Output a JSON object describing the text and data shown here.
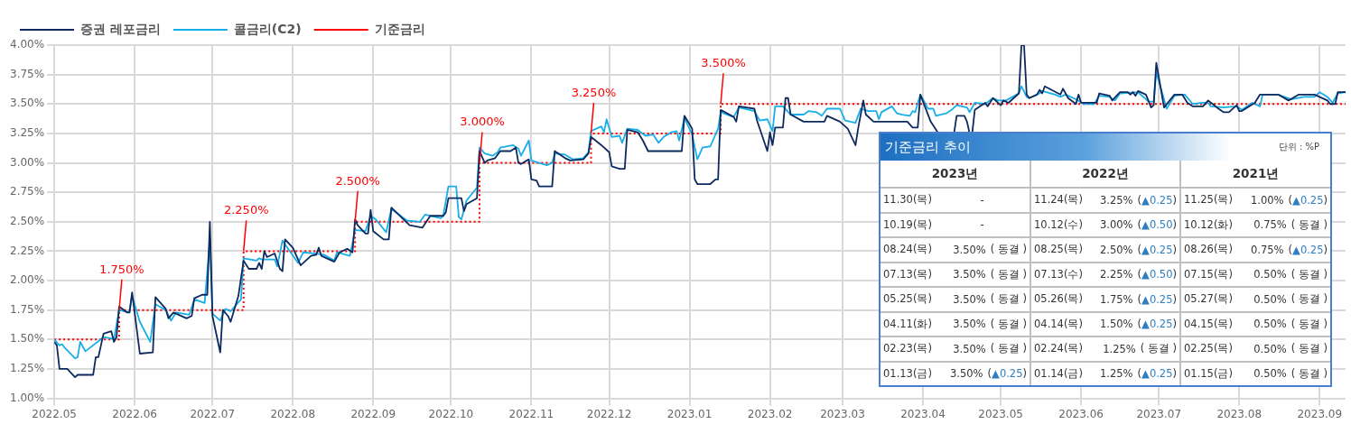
{
  "chart_data": [
    {
      "type": "line",
      "legend": "top left",
      "grid": true,
      "marker": "none",
      "xlim": [
        "2022-05-01",
        "2023-09-11"
      ],
      "xticks": [
        {
          "value": "2022-05-01",
          "label": "2022.05"
        },
        {
          "value": "2022-06-01",
          "label": "2022.06"
        },
        {
          "value": "2022-07-01",
          "label": "2022.07"
        },
        {
          "value": "2022-08-01",
          "label": "2022.08"
        },
        {
          "value": "2022-09-01",
          "label": "2022.09"
        },
        {
          "value": "2022-10-01",
          "label": "2022.10"
        },
        {
          "value": "2022-11-01",
          "label": "2022.11"
        },
        {
          "value": "2022-12-01",
          "label": "2022.12"
        },
        {
          "value": "2023-01-01",
          "label": "2023.01"
        },
        {
          "value": "2023-02-01",
          "label": "2023.02"
        },
        {
          "value": "2023-03-01",
          "label": "2023.03"
        },
        {
          "value": "2023-04-01",
          "label": "2023.04"
        },
        {
          "value": "2023-05-01",
          "label": "2023.05"
        },
        {
          "value": "2023-06-01",
          "label": "2023.06"
        },
        {
          "value": "2023-07-01",
          "label": "2023.07"
        },
        {
          "value": "2023-08-01",
          "label": "2023.08"
        },
        {
          "value": "2023-09-01",
          "label": "2023.09"
        }
      ],
      "ylim": [
        1,
        4
      ],
      "yticks": [
        {
          "value": 1,
          "label": "1.00%"
        },
        {
          "value": 1.25,
          "label": "1.25%"
        },
        {
          "value": 1.5,
          "label": "1.50%"
        },
        {
          "value": 1.75,
          "label": "1.75%"
        },
        {
          "value": 2,
          "label": "2.00%"
        },
        {
          "value": 2.25,
          "label": "2.25%"
        },
        {
          "value": 2.5,
          "label": "2.50%"
        },
        {
          "value": 2.75,
          "label": "2.75%"
        },
        {
          "value": 3,
          "label": "3.00%"
        },
        {
          "value": 3.25,
          "label": "3.25%"
        },
        {
          "value": 3.5,
          "label": "3.50%"
        },
        {
          "value": 3.75,
          "label": "3.75%"
        },
        {
          "value": 4,
          "label": "4.00%"
        }
      ],
      "annotations": [
        {
          "text": "1.750%",
          "x": "2022-05-26",
          "y": 1.75
        },
        {
          "text": "2.250%",
          "x": "2022-07-13",
          "y": 2.25
        },
        {
          "text": "2.500%",
          "x": "2022-08-25",
          "y": 2.5
        },
        {
          "text": "3.000%",
          "x": "2022-10-12",
          "y": 3
        },
        {
          "text": "3.250%",
          "x": "2022-11-24",
          "y": 3.25
        },
        {
          "text": "3.500%",
          "x": "2023-01-13",
          "y": 3.5
        }
      ],
      "series": [
        {
          "name": "증권 레포금리",
          "type": "line",
          "color": "#0d2a5e",
          "x": [
            "2022-05-01",
            "2022-05-02",
            "2022-05-03",
            "2022-05-06",
            "2022-05-09",
            "2022-05-10",
            "2022-05-16",
            "2022-05-17",
            "2022-05-18",
            "2022-05-20",
            "2022-05-23",
            "2022-05-24",
            "2022-05-25",
            "2022-05-26",
            "2022-05-29",
            "2022-05-30",
            "2022-05-31",
            "2022-06-03",
            "2022-06-08",
            "2022-06-09",
            "2022-06-13",
            "2022-06-14",
            "2022-06-16",
            "2022-06-21",
            "2022-06-23",
            "2022-06-24",
            "2022-06-27",
            "2022-06-29",
            "2022-06-30",
            "2022-07-01",
            "2022-07-04",
            "2022-07-05",
            "2022-07-07",
            "2022-07-08",
            "2022-07-11",
            "2022-07-13",
            "2022-07-15",
            "2022-07-18",
            "2022-07-19",
            "2022-07-20",
            "2022-07-21",
            "2022-07-22",
            "2022-07-25",
            "2022-07-27",
            "2022-07-28",
            "2022-07-29",
            "2022-08-01",
            "2022-08-04",
            "2022-08-08",
            "2022-08-10",
            "2022-08-11",
            "2022-08-12",
            "2022-08-17",
            "2022-08-19",
            "2022-08-22",
            "2022-08-24",
            "2022-08-25",
            "2022-08-26",
            "2022-08-29",
            "2022-08-30",
            "2022-08-31",
            "2022-09-01",
            "2022-09-05",
            "2022-09-07",
            "2022-09-08",
            "2022-09-15",
            "2022-09-20",
            "2022-09-23",
            "2022-09-28",
            "2022-09-29",
            "2022-09-30",
            "2022-10-05",
            "2022-10-06",
            "2022-10-07",
            "2022-10-11",
            "2022-10-12",
            "2022-10-14",
            "2022-10-15",
            "2022-10-18",
            "2022-10-20",
            "2022-10-24",
            "2022-10-26",
            "2022-10-27",
            "2022-10-28",
            "2022-10-31",
            "2022-11-01",
            "2022-11-03",
            "2022-11-04",
            "2022-11-09",
            "2022-11-10",
            "2022-11-14",
            "2022-11-16",
            "2022-11-21",
            "2022-11-23",
            "2022-11-24",
            "2022-11-28",
            "2022-12-01",
            "2022-12-02",
            "2022-12-05",
            "2022-12-07",
            "2022-12-08",
            "2022-12-12",
            "2022-12-14",
            "2022-12-16",
            "2022-12-29",
            "2022-12-30",
            "2023-01-02",
            "2023-01-03",
            "2023-01-04",
            "2023-01-09",
            "2023-01-11",
            "2023-01-12",
            "2023-01-13",
            "2023-01-18",
            "2023-01-19",
            "2023-01-20",
            "2023-01-26",
            "2023-01-27",
            "2023-01-31",
            "2023-02-01",
            "2023-02-02",
            "2023-02-03",
            "2023-02-06",
            "2023-02-07",
            "2023-02-08",
            "2023-02-09",
            "2023-02-14",
            "2023-02-22",
            "2023-02-23",
            "2023-02-28",
            "2023-03-03",
            "2023-03-06",
            "2023-03-07",
            "2023-03-09",
            "2023-03-10",
            "2023-03-13",
            "2023-03-20",
            "2023-03-26",
            "2023-03-28",
            "2023-03-30",
            "2023-03-31",
            "2023-04-04",
            "2023-04-07",
            "2023-04-13",
            "2023-04-14",
            "2023-04-17",
            "2023-04-18",
            "2023-04-19",
            "2023-04-20",
            "2023-04-21",
            "2023-04-25",
            "2023-04-26",
            "2023-04-28",
            "2023-05-01",
            "2023-05-02",
            "2023-05-04",
            "2023-05-08",
            "2023-05-09",
            "2023-05-10",
            "2023-05-11",
            "2023-05-12",
            "2023-05-15",
            "2023-05-16",
            "2023-05-17",
            "2023-05-18",
            "2023-05-24",
            "2023-05-25",
            "2023-05-27",
            "2023-05-30",
            "2023-05-31",
            "2023-06-01",
            "2023-06-07",
            "2023-06-08",
            "2023-06-12",
            "2023-06-13",
            "2023-06-16",
            "2023-06-19",
            "2023-06-20",
            "2023-06-21",
            "2023-06-22",
            "2023-06-23",
            "2023-06-26",
            "2023-06-28",
            "2023-06-29",
            "2023-06-30",
            "2023-07-03",
            "2023-07-07",
            "2023-07-10",
            "2023-07-12",
            "2023-07-14",
            "2023-07-18",
            "2023-07-20",
            "2023-07-24",
            "2023-07-26",
            "2023-07-28",
            "2023-07-31",
            "2023-08-01",
            "2023-08-02",
            "2023-08-07",
            "2023-08-09",
            "2023-08-16",
            "2023-08-20",
            "2023-08-24",
            "2023-08-30",
            "2023-09-04",
            "2023-09-05",
            "2023-09-07",
            "2023-09-08",
            "2023-09-11"
          ],
          "values": [
            1.48,
            1.45,
            1.25,
            1.25,
            1.18,
            1.2,
            1.2,
            1.35,
            1.35,
            1.55,
            1.57,
            1.48,
            1.52,
            1.78,
            1.73,
            1.73,
            1.9,
            1.38,
            1.39,
            1.86,
            1.76,
            1.68,
            1.73,
            1.68,
            1.7,
            1.85,
            1.88,
            1.88,
            2.5,
            1.7,
            1.39,
            1.75,
            1.7,
            1.65,
            1.87,
            2.17,
            2.1,
            2.1,
            2.15,
            2.1,
            2.25,
            2.2,
            2.23,
            2.1,
            2.08,
            2.35,
            2.28,
            2.13,
            2.21,
            2.22,
            2.28,
            2.21,
            2.16,
            2.24,
            2.27,
            2.24,
            2.52,
            2.47,
            2.4,
            2.4,
            2.6,
            2.42,
            2.35,
            2.35,
            2.62,
            2.47,
            2.45,
            2.55,
            2.55,
            2.58,
            2.7,
            2.7,
            2.59,
            2.65,
            2.7,
            3.1,
            3,
            3.02,
            3.04,
            3.1,
            3.1,
            3.13,
            3,
            2.99,
            3.03,
            2.86,
            2.85,
            2.8,
            2.8,
            3.1,
            3.04,
            3.02,
            3.03,
            3.08,
            3.22,
            3.15,
            3.09,
            2.97,
            2.95,
            2.95,
            3.28,
            3.26,
            3.19,
            3.1,
            3.1,
            3.4,
            3.29,
            2.86,
            2.82,
            2.82,
            2.86,
            2.86,
            3.45,
            3.39,
            3.35,
            3.48,
            3.46,
            3.36,
            3.1,
            3.26,
            3.15,
            3.3,
            3.3,
            3.55,
            3.55,
            3.41,
            3.35,
            3.35,
            3.4,
            3.35,
            3.29,
            3.15,
            3.29,
            3.53,
            3.41,
            3.35,
            3.35,
            3.35,
            3.3,
            3.3,
            3.58,
            3.35,
            3.25,
            3.25,
            3.4,
            3.4,
            3.35,
            3.25,
            3.25,
            3.45,
            3.51,
            3.48,
            3.55,
            3.49,
            3.53,
            3.51,
            3.59,
            4,
            4,
            3.58,
            3.55,
            3.58,
            3.62,
            3.59,
            3.65,
            3.58,
            3.63,
            3.55,
            3.5,
            3.58,
            3.51,
            3.51,
            3.59,
            3.57,
            3.53,
            3.6,
            3.6,
            3.58,
            3.6,
            3.57,
            3.61,
            3.58,
            3.47,
            3.49,
            3.85,
            3.47,
            3.58,
            3.58,
            3.51,
            3.48,
            3.48,
            3.53,
            3.46,
            3.43,
            3.43,
            3.49,
            3.44,
            3.44,
            3.51,
            3.58,
            3.58,
            3.53,
            3.58,
            3.58,
            3.53,
            3.5,
            3.5,
            3.6,
            3.6
          ]
        },
        {
          "name": "콜금리(C2)",
          "type": "line",
          "color": "#18aee8",
          "x": [
            "2022-05-01",
            "2022-05-03",
            "2022-05-04",
            "2022-05-05",
            "2022-05-09",
            "2022-05-10",
            "2022-05-11",
            "2022-05-13",
            "2022-05-20",
            "2022-05-23",
            "2022-05-24",
            "2022-05-26",
            "2022-05-30",
            "2022-05-31",
            "2022-06-03",
            "2022-06-07",
            "2022-06-09",
            "2022-06-13",
            "2022-06-15",
            "2022-06-17",
            "2022-06-22",
            "2022-06-24",
            "2022-06-28",
            "2022-06-30",
            "2022-07-01",
            "2022-07-04",
            "2022-07-06",
            "2022-07-08",
            "2022-07-12",
            "2022-07-13",
            "2022-07-18",
            "2022-07-19",
            "2022-07-20",
            "2022-07-25",
            "2022-07-26",
            "2022-07-28",
            "2022-08-03",
            "2022-08-05",
            "2022-08-10",
            "2022-08-13",
            "2022-08-17",
            "2022-08-18",
            "2022-08-23",
            "2022-08-25",
            "2022-08-29",
            "2022-08-31",
            "2022-09-02",
            "2022-09-06",
            "2022-09-08",
            "2022-09-14",
            "2022-09-19",
            "2022-09-21",
            "2022-09-27",
            "2022-09-28",
            "2022-09-30",
            "2022-10-03",
            "2022-10-04",
            "2022-10-05",
            "2022-10-06",
            "2022-10-07",
            "2022-10-11",
            "2022-10-12",
            "2022-10-14",
            "2022-10-17",
            "2022-10-19",
            "2022-10-20",
            "2022-10-25",
            "2022-10-27",
            "2022-10-28",
            "2022-10-31",
            "2022-11-01",
            "2022-11-04",
            "2022-11-07",
            "2022-11-09",
            "2022-11-10",
            "2022-11-14",
            "2022-11-17",
            "2022-11-21",
            "2022-11-23",
            "2022-11-24",
            "2022-11-28",
            "2022-11-29",
            "2022-11-30",
            "2022-12-02",
            "2022-12-05",
            "2022-12-06",
            "2022-12-08",
            "2022-12-12",
            "2022-12-15",
            "2022-12-18",
            "2022-12-20",
            "2022-12-22",
            "2022-12-25",
            "2022-12-27",
            "2022-12-28",
            "2022-12-30",
            "2023-01-02",
            "2023-01-04",
            "2023-01-06",
            "2023-01-09",
            "2023-01-12",
            "2023-01-13",
            "2023-01-18",
            "2023-01-20",
            "2023-01-26",
            "2023-01-28",
            "2023-01-31",
            "2023-02-02",
            "2023-02-03",
            "2023-02-06",
            "2023-02-09",
            "2023-02-14",
            "2023-02-16",
            "2023-02-19",
            "2023-02-21",
            "2023-02-23",
            "2023-02-28",
            "2023-03-02",
            "2023-03-06",
            "2023-03-08",
            "2023-03-11",
            "2023-03-14",
            "2023-03-15",
            "2023-03-16",
            "2023-03-20",
            "2023-03-22",
            "2023-03-24",
            "2023-03-27",
            "2023-03-28",
            "2023-03-29",
            "2023-03-31",
            "2023-04-03",
            "2023-04-05",
            "2023-04-06",
            "2023-04-10",
            "2023-04-12",
            "2023-04-14",
            "2023-04-18",
            "2023-04-19",
            "2023-04-21",
            "2023-04-25",
            "2023-04-28",
            "2023-04-30",
            "2023-05-03",
            "2023-05-08",
            "2023-05-09",
            "2023-05-11",
            "2023-05-12",
            "2023-05-16",
            "2023-05-17",
            "2023-05-22",
            "2023-05-24",
            "2023-05-26",
            "2023-05-30",
            "2023-06-02",
            "2023-06-06",
            "2023-06-08",
            "2023-06-12",
            "2023-06-14",
            "2023-06-16",
            "2023-06-23",
            "2023-06-27",
            "2023-06-29",
            "2023-06-30",
            "2023-07-04",
            "2023-07-07",
            "2023-07-11",
            "2023-07-14",
            "2023-07-18",
            "2023-07-20",
            "2023-07-21",
            "2023-07-26",
            "2023-07-31",
            "2023-08-02",
            "2023-08-06",
            "2023-08-09",
            "2023-08-10",
            "2023-08-16",
            "2023-08-21",
            "2023-08-26",
            "2023-08-30",
            "2023-09-01",
            "2023-09-04",
            "2023-09-06",
            "2023-09-08",
            "2023-09-11"
          ],
          "values": [
            1.5,
            1.45,
            1.46,
            1.43,
            1.34,
            1.35,
            1.48,
            1.4,
            1.52,
            1.51,
            1.5,
            1.75,
            1.73,
            1.87,
            1.65,
            1.48,
            1.8,
            1.75,
            1.66,
            1.73,
            1.71,
            1.84,
            1.81,
            2.35,
            1.72,
            1.66,
            1.76,
            1.74,
            1.84,
            2.19,
            2.17,
            2.19,
            2.18,
            2.18,
            2.12,
            2.34,
            2.15,
            2.24,
            2.23,
            2.22,
            2.17,
            2.24,
            2.21,
            2.43,
            2.42,
            2.55,
            2.52,
            2.41,
            2.61,
            2.51,
            2.5,
            2.56,
            2.53,
            2.55,
            2.8,
            2.8,
            2.54,
            2.52,
            2.6,
            2.68,
            2.79,
            3.13,
            3.08,
            3.06,
            3.09,
            3.13,
            3.15,
            3.12,
            3.06,
            3.19,
            3.02,
            3,
            2.98,
            3,
            3.08,
            3.07,
            3.03,
            3.04,
            3.09,
            3.27,
            3.31,
            3.26,
            3.37,
            3.22,
            3.23,
            3.17,
            3.29,
            3.28,
            3.23,
            3.24,
            3.17,
            3.22,
            3.26,
            3.27,
            3.19,
            3.38,
            3.24,
            3.03,
            3.13,
            3.14,
            3.29,
            3.43,
            3.39,
            3.47,
            3.44,
            3.36,
            3.37,
            3.27,
            3.48,
            3.48,
            3.41,
            3.41,
            3.44,
            3.43,
            3.4,
            3.46,
            3.46,
            3.36,
            3.34,
            3.46,
            3.44,
            3.44,
            3.37,
            3.43,
            3.48,
            3.42,
            3.41,
            3.4,
            3.44,
            3.43,
            3.58,
            3.46,
            3.46,
            3.4,
            3.42,
            3.45,
            3.49,
            3.47,
            3.43,
            3.51,
            3.5,
            3.55,
            3.53,
            3.53,
            3.59,
            3.65,
            3.56,
            3.55,
            3.59,
            3.61,
            3.58,
            3.56,
            3.58,
            3.54,
            3.5,
            3.5,
            3.57,
            3.56,
            3.53,
            3.59,
            3.6,
            3.52,
            3.52,
            3.77,
            3.46,
            3.57,
            3.58,
            3.5,
            3.51,
            3.51,
            3.48,
            3.47,
            3.48,
            3.45,
            3.51,
            3.48,
            3.58,
            3.58,
            3.54,
            3.56,
            3.56,
            3.6,
            3.56,
            3.51,
            3.59,
            3.6
          ]
        },
        {
          "name": "기준금리",
          "type": "step",
          "color": "#ff0000",
          "line_style": "dotted",
          "x": [
            "2022-05-01",
            "2022-05-26",
            "2022-07-13",
            "2022-08-25",
            "2022-10-12",
            "2022-11-24",
            "2023-01-13",
            "2023-09-11"
          ],
          "values": [
            1.5,
            1.75,
            2.25,
            2.5,
            3,
            3.25,
            3.5,
            3.5
          ]
        }
      ]
    },
    {
      "type": "other",
      "title": "기준금리 추이",
      "subtitle": "단위 : %P",
      "categories": [
        "2023년",
        "2022년",
        "2021년"
      ],
      "annotations": [
        "11.30(목) -",
        "11.24(목) 3.25% (▲0.25)",
        "11.25(목) 1.00% (▲0.25)",
        "10.19(목) -",
        "10.12(수) 3.00% (▲0.50)",
        "10.12(화) 0.75% ( 동결 )",
        "08.24(목) 3.50% ( 동결 )",
        "08.25(목) 2.50% (▲0.25)",
        "08.26(목) 0.75% (▲0.25)",
        "07.13(목) 3.50% ( 동결 )",
        "07.13(수) 2.25% (▲0.50)",
        "07.15(목) 0.50% ( 동결 )",
        "05.25(목) 3.50% ( 동결 )",
        "05.26(목) 1.75% (▲0.25)",
        "05.27(목) 0.50% ( 동결 )",
        "04.11(화) 3.50% ( 동결 )",
        "04.14(목) 1.50% (▲0.25)",
        "04.15(목) 0.50% ( 동결 )",
        "02.23(목) 3.50% ( 동결 )",
        "02.24(목) 1.25% ( 동결 )",
        "02.25(목) 0.50% ( 동결 )",
        "01.13(금) 3.50% (▲0.25)",
        "01.14(금) 1.25% (▲0.25)",
        "01.15(금) 0.50% ( 동결 )"
      ]
    }
  ]
}
